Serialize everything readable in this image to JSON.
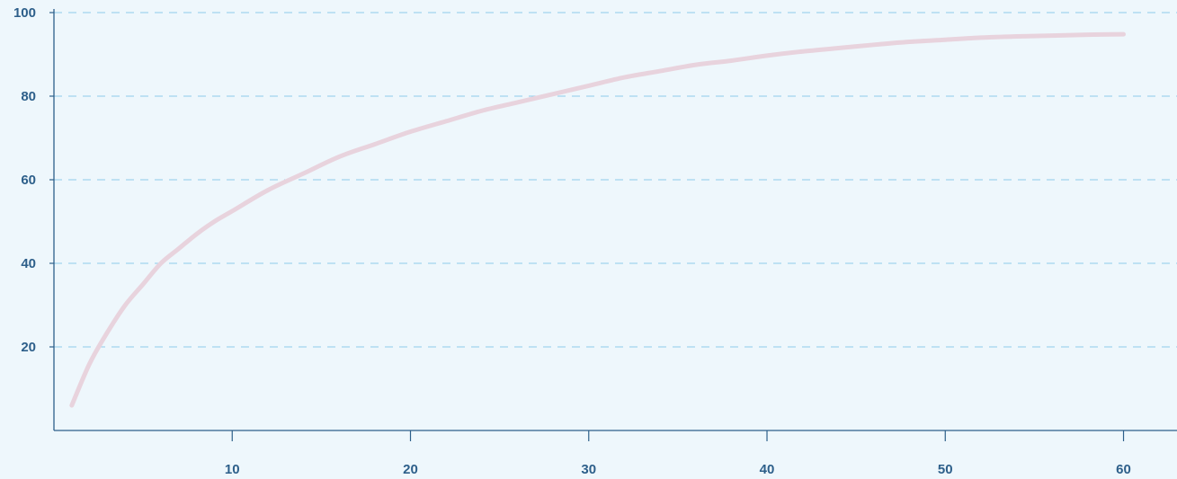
{
  "chart_data": {
    "type": "line",
    "title": "",
    "xlabel": "",
    "ylabel": "",
    "xlim": [
      0,
      63
    ],
    "ylim": [
      0,
      100
    ],
    "x_ticks": [
      10,
      20,
      30,
      40,
      50,
      60
    ],
    "y_ticks": [
      20,
      40,
      60,
      80,
      100
    ],
    "x_tick_labels": [
      "10",
      "20",
      "30",
      "40",
      "50",
      "60"
    ],
    "y_tick_labels": [
      "20",
      "40",
      "60",
      "80",
      "100"
    ],
    "grid": "horizontal-dashed",
    "series": [
      {
        "x": [
          1,
          2,
          3,
          4,
          5,
          6,
          7,
          8,
          9,
          10,
          12,
          14,
          16,
          18,
          20,
          22,
          24,
          26,
          28,
          30,
          32,
          34,
          36,
          38,
          40,
          42,
          44,
          46,
          48,
          50,
          52,
          54,
          56,
          58,
          60
        ],
        "values": [
          6,
          16,
          23.5,
          30,
          35,
          40,
          43.5,
          47,
          50,
          52.5,
          57.5,
          61.5,
          65.5,
          68.5,
          71.5,
          74,
          76.5,
          78.5,
          80.5,
          82.5,
          84.5,
          86,
          87.5,
          88.5,
          89.7,
          90.7,
          91.5,
          92.3,
          93,
          93.5,
          94,
          94.3,
          94.5,
          94.7,
          94.8
        ]
      }
    ],
    "colors": {
      "background": "#eef7fc",
      "line": "#e8d3dd",
      "axis": "#2d5f8a",
      "grid": "#8ecbea",
      "tick_label": "#2d5f8a"
    }
  }
}
